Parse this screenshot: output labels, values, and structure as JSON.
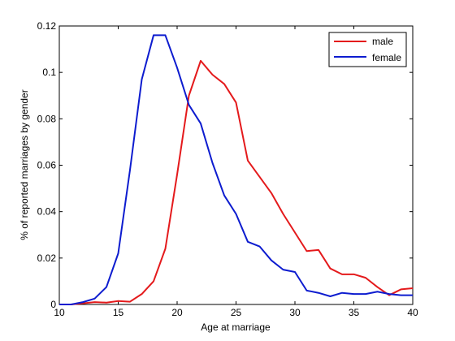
{
  "chart_data": {
    "type": "line",
    "xlabel": "Age at marriage",
    "ylabel": "% of reported marriages by gender",
    "xlim": [
      10,
      40
    ],
    "ylim": [
      0,
      0.12
    ],
    "x_ticks": [
      10,
      15,
      20,
      25,
      30,
      35,
      40
    ],
    "y_ticks": [
      0,
      0.02,
      0.04,
      0.06,
      0.08,
      0.1,
      0.12
    ],
    "x_tick_labels": [
      "10",
      "15",
      "20",
      "25",
      "30",
      "35",
      "40"
    ],
    "y_tick_labels": [
      "0",
      "0.02",
      "0.04",
      "0.06",
      "0.08",
      "0.1",
      "0.12"
    ],
    "grid": false,
    "legend_position": "top-right",
    "x": [
      10,
      11,
      12,
      13,
      14,
      15,
      16,
      17,
      18,
      19,
      20,
      21,
      22,
      23,
      24,
      25,
      26,
      27,
      28,
      29,
      30,
      31,
      32,
      33,
      34,
      35,
      36,
      37,
      38,
      39,
      40
    ],
    "series": [
      {
        "name": "male",
        "color": "#e41a1c",
        "values": [
          0,
          0,
          0.0005,
          0.001,
          0.0008,
          0.0015,
          0.0012,
          0.0045,
          0.01,
          0.024,
          0.056,
          0.09,
          0.105,
          0.099,
          0.095,
          0.087,
          0.062,
          0.055,
          0.048,
          0.039,
          0.031,
          0.023,
          0.0235,
          0.0155,
          0.013,
          0.013,
          0.0115,
          0.0075,
          0.004,
          0.0065,
          0.007
        ]
      },
      {
        "name": "female",
        "color": "#0d1ccf",
        "values": [
          0,
          0,
          0.001,
          0.0025,
          0.0075,
          0.022,
          0.058,
          0.097,
          0.116,
          0.116,
          0.102,
          0.086,
          0.078,
          0.061,
          0.047,
          0.039,
          0.027,
          0.025,
          0.019,
          0.015,
          0.014,
          0.006,
          0.005,
          0.0035,
          0.005,
          0.0045,
          0.0045,
          0.0055,
          0.0045,
          0.004,
          0.004
        ]
      }
    ]
  }
}
